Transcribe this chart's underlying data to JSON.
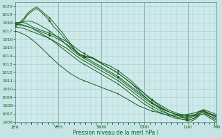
{
  "title": "",
  "xlabel": "Pression niveau de la mer( hPa )",
  "bg_color": "#c5e5e5",
  "plot_bg_color": "#ceeaea",
  "grid_color_minor": "#a8cccc",
  "grid_color_major": "#90b8b8",
  "line_color": "#1a5c1a",
  "ylim": [
    1006,
    1020.5
  ],
  "yticks": [
    1006,
    1007,
    1008,
    1009,
    1010,
    1011,
    1012,
    1013,
    1014,
    1015,
    1016,
    1017,
    1018,
    1019,
    1020
  ],
  "xtick_labels": [
    "Jeu",
    "Ven",
    "Sam",
    "Dim",
    "Lun",
    "Ma"
  ],
  "xtick_positions": [
    0,
    1,
    2,
    3,
    4,
    4.667
  ],
  "vline_positions": [
    0,
    1,
    2,
    3,
    4,
    4.667
  ],
  "n_points": 48,
  "x_start": 0,
  "x_end": 4.667,
  "series": [
    [
      1017.8,
      1018.0,
      1018.5,
      1019.2,
      1019.6,
      1019.9,
      1019.5,
      1019.0,
      1018.6,
      1018.0,
      1017.4,
      1016.8,
      1016.1,
      1015.4,
      1014.7,
      1014.2,
      1014.0,
      1013.9,
      1013.8,
      1013.5,
      1013.2,
      1013.0,
      1012.8,
      1012.5,
      1012.2,
      1011.8,
      1011.4,
      1011.0,
      1010.5,
      1010.0,
      1009.5,
      1009.0,
      1008.6,
      1008.2,
      1007.8,
      1007.5,
      1007.2,
      1007.0,
      1006.8,
      1006.6,
      1006.4,
      1006.3,
      1006.5,
      1007.0,
      1007.2,
      1006.8,
      1006.5,
      1006.2
    ],
    [
      1017.6,
      1017.9,
      1018.3,
      1019.0,
      1019.4,
      1019.7,
      1019.3,
      1018.8,
      1018.2,
      1017.5,
      1017.0,
      1016.4,
      1015.8,
      1015.2,
      1014.6,
      1014.1,
      1013.9,
      1013.8,
      1013.7,
      1013.4,
      1013.1,
      1012.8,
      1012.5,
      1012.2,
      1011.9,
      1011.5,
      1011.1,
      1010.7,
      1010.2,
      1009.7,
      1009.2,
      1008.7,
      1008.3,
      1007.9,
      1007.5,
      1007.2,
      1006.9,
      1006.7,
      1006.5,
      1006.3,
      1006.2,
      1006.1,
      1006.3,
      1006.8,
      1007.0,
      1006.6,
      1006.3,
      1006.0
    ],
    [
      1018.0,
      1018.0,
      1018.0,
      1017.8,
      1017.5,
      1017.3,
      1017.1,
      1016.9,
      1016.7,
      1016.5,
      1016.3,
      1016.0,
      1015.7,
      1015.4,
      1015.0,
      1014.6,
      1014.3,
      1014.0,
      1013.7,
      1013.4,
      1013.1,
      1012.8,
      1012.5,
      1012.2,
      1011.9,
      1011.5,
      1011.1,
      1010.7,
      1010.3,
      1009.9,
      1009.5,
      1009.1,
      1008.7,
      1008.3,
      1008.0,
      1007.7,
      1007.4,
      1007.2,
      1007.0,
      1006.9,
      1006.8,
      1006.7,
      1006.8,
      1007.2,
      1007.4,
      1007.0,
      1006.8,
      1006.6
    ],
    [
      1017.8,
      1017.8,
      1017.7,
      1017.5,
      1017.3,
      1017.1,
      1016.9,
      1016.7,
      1016.5,
      1016.3,
      1016.0,
      1015.7,
      1015.4,
      1015.0,
      1014.6,
      1014.2,
      1013.9,
      1013.6,
      1013.3,
      1013.0,
      1012.7,
      1012.4,
      1012.1,
      1011.8,
      1011.5,
      1011.1,
      1010.7,
      1010.3,
      1009.9,
      1009.5,
      1009.1,
      1008.7,
      1008.3,
      1008.0,
      1007.7,
      1007.4,
      1007.2,
      1007.0,
      1006.8,
      1006.7,
      1006.7,
      1006.7,
      1006.8,
      1007.2,
      1007.4,
      1007.1,
      1006.9,
      1006.7
    ],
    [
      1017.5,
      1017.4,
      1017.3,
      1017.1,
      1016.9,
      1016.7,
      1016.5,
      1016.3,
      1016.1,
      1015.8,
      1015.5,
      1015.2,
      1014.9,
      1014.5,
      1014.1,
      1013.7,
      1013.4,
      1013.1,
      1012.8,
      1012.5,
      1012.2,
      1011.9,
      1011.6,
      1011.3,
      1011.0,
      1010.6,
      1010.2,
      1009.8,
      1009.4,
      1009.0,
      1008.6,
      1008.2,
      1007.9,
      1007.6,
      1007.3,
      1007.1,
      1006.9,
      1006.7,
      1006.6,
      1006.5,
      1006.5,
      1006.5,
      1006.7,
      1007.0,
      1007.2,
      1007.0,
      1006.8,
      1006.6
    ],
    [
      1017.8,
      1017.7,
      1017.6,
      1017.5,
      1017.3,
      1017.0,
      1016.7,
      1016.4,
      1016.1,
      1015.7,
      1015.3,
      1014.9,
      1014.5,
      1014.1,
      1013.7,
      1013.3,
      1013.0,
      1012.7,
      1012.4,
      1012.1,
      1011.8,
      1011.5,
      1011.2,
      1010.9,
      1010.6,
      1010.2,
      1009.8,
      1009.4,
      1009.0,
      1008.6,
      1008.2,
      1007.9,
      1007.6,
      1007.3,
      1007.1,
      1006.9,
      1006.7,
      1006.5,
      1006.4,
      1006.3,
      1006.3,
      1006.3,
      1006.5,
      1006.8,
      1007.0,
      1006.8,
      1006.6,
      1006.4
    ],
    [
      1018.0,
      1018.0,
      1018.1,
      1018.2,
      1018.1,
      1017.9,
      1017.6,
      1017.3,
      1017.0,
      1016.6,
      1016.2,
      1015.8,
      1015.3,
      1014.8,
      1014.4,
      1014.0,
      1013.7,
      1013.4,
      1013.1,
      1012.8,
      1012.5,
      1012.2,
      1011.9,
      1011.6,
      1011.3,
      1010.9,
      1010.5,
      1010.1,
      1009.7,
      1009.3,
      1008.9,
      1008.5,
      1008.2,
      1007.9,
      1007.6,
      1007.4,
      1007.2,
      1007.0,
      1006.9,
      1006.8,
      1006.8,
      1006.8,
      1006.9,
      1007.2,
      1007.3,
      1007.1,
      1006.9,
      1006.7
    ],
    [
      1017.0,
      1016.8,
      1016.6,
      1016.3,
      1015.9,
      1015.5,
      1015.0,
      1014.5,
      1014.0,
      1013.5,
      1013.0,
      1012.6,
      1012.2,
      1011.8,
      1011.5,
      1011.2,
      1011.0,
      1010.8,
      1010.6,
      1010.4,
      1010.2,
      1010.0,
      1009.8,
      1009.6,
      1009.4,
      1009.1,
      1008.8,
      1008.5,
      1008.2,
      1007.9,
      1007.7,
      1007.5,
      1007.3,
      1007.2,
      1007.0,
      1006.9,
      1006.8,
      1006.8,
      1006.8,
      1006.8,
      1006.9,
      1007.0,
      1007.1,
      1007.3,
      1007.5,
      1007.3,
      1007.1,
      1006.9
    ]
  ]
}
